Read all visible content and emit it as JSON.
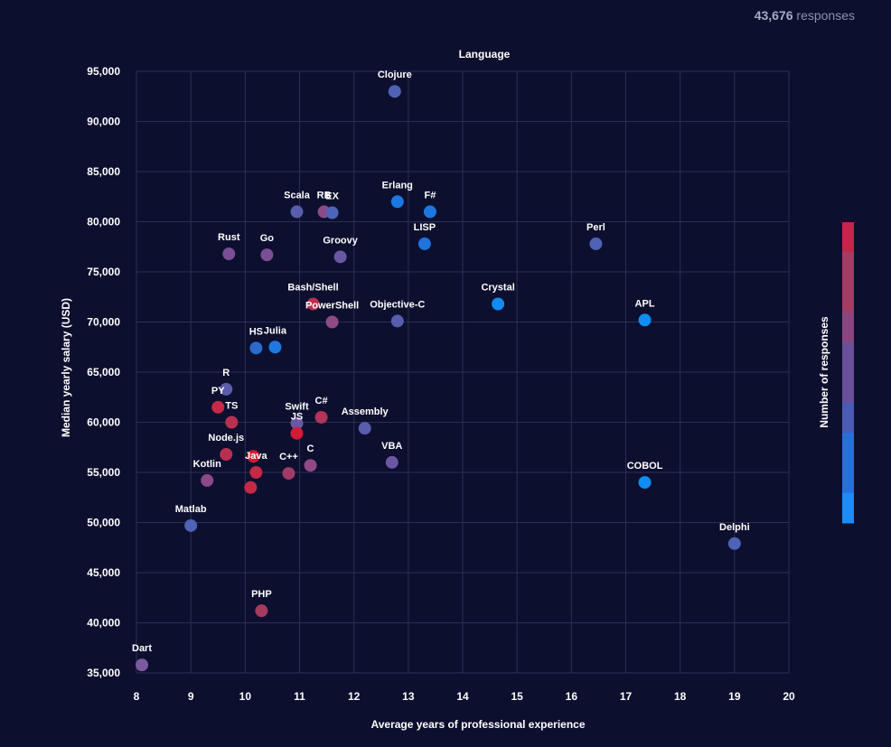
{
  "header": {
    "count": "43,676",
    "count_suffix": "responses"
  },
  "chart_data": {
    "type": "scatter",
    "title": "Language",
    "xlabel": "Average years of professional experience",
    "ylabel": "Median yearly salary (USD)",
    "xlim": [
      8,
      20
    ],
    "ylim": [
      35000,
      95000
    ],
    "xticks": [
      "8",
      "9",
      "10",
      "11",
      "12",
      "13",
      "14",
      "15",
      "16",
      "17",
      "18",
      "19",
      "20"
    ],
    "yticks": [
      "35,000",
      "40,000",
      "45,000",
      "50,000",
      "55,000",
      "60,000",
      "65,000",
      "70,000",
      "75,000",
      "80,000",
      "85,000",
      "90,000",
      "95,000"
    ],
    "grid": true,
    "legend": {
      "title": "Number of responses",
      "placement": "right",
      "colors": [
        "#1a8cff",
        "#2a6fd8",
        "#4a5bb5",
        "#6a4f9a",
        "#8a4580",
        "#a83a64",
        "#c5254a"
      ]
    },
    "points": [
      {
        "label": "Clojure",
        "x": 12.75,
        "y": 93000,
        "color": "#4f62b5"
      },
      {
        "label": "Scala",
        "x": 10.95,
        "y": 81000,
        "color": "#5a5dab"
      },
      {
        "label": "RB",
        "x": 11.45,
        "y": 81000,
        "color": "#8a4a88"
      },
      {
        "label": "EX",
        "x": 11.6,
        "y": 80900,
        "color": "#4d64b8"
      },
      {
        "label": "Erlang",
        "x": 12.8,
        "y": 82000,
        "color": "#1c78e0"
      },
      {
        "label": "F#",
        "x": 13.4,
        "y": 81000,
        "color": "#1c78e0"
      },
      {
        "label": "Rust",
        "x": 9.7,
        "y": 76800,
        "color": "#7a4f96"
      },
      {
        "label": "Go",
        "x": 10.4,
        "y": 76700,
        "color": "#7a4f96"
      },
      {
        "label": "Groovy",
        "x": 11.75,
        "y": 76500,
        "color": "#6a57a2"
      },
      {
        "label": "LISP",
        "x": 13.3,
        "y": 77800,
        "color": "#1e74dc"
      },
      {
        "label": "Perl",
        "x": 16.45,
        "y": 77800,
        "color": "#4f62b5"
      },
      {
        "label": "Bash/Shell",
        "x": 11.25,
        "y": 71800,
        "color": "#b8304f"
      },
      {
        "label": "PowerShell",
        "x": 11.6,
        "y": 70000,
        "color": "#8f4a86"
      },
      {
        "label": "Objective-C",
        "x": 12.8,
        "y": 70100,
        "color": "#5a5dab"
      },
      {
        "label": "Crystal",
        "x": 14.65,
        "y": 71800,
        "color": "#108cf2"
      },
      {
        "label": "APL",
        "x": 17.35,
        "y": 70200,
        "color": "#108cf2"
      },
      {
        "label": "HS",
        "x": 10.2,
        "y": 67400,
        "color": "#2c6bc9"
      },
      {
        "label": "Julia",
        "x": 10.55,
        "y": 67500,
        "color": "#1c78e0"
      },
      {
        "label": "R",
        "x": 9.65,
        "y": 63300,
        "color": "#5a5dab"
      },
      {
        "label": "PY",
        "x": 9.5,
        "y": 61500,
        "color": "#c52a48"
      },
      {
        "label": "TS",
        "x": 9.75,
        "y": 60000,
        "color": "#b83050"
      },
      {
        "label": "Swift",
        "x": 10.95,
        "y": 59900,
        "color": "#6a57a2"
      },
      {
        "label": "C#",
        "x": 11.4,
        "y": 60500,
        "color": "#b13558"
      },
      {
        "label": "JS",
        "x": 10.95,
        "y": 58900,
        "color": "#d21c36"
      },
      {
        "label": "Assembly",
        "x": 12.2,
        "y": 59400,
        "color": "#5a5dab"
      },
      {
        "label": "Node.js",
        "x": 9.65,
        "y": 56800,
        "color": "#b83050"
      },
      {
        "label": "",
        "x": 10.15,
        "y": 56600,
        "color": "#d21c36"
      },
      {
        "label": "Java",
        "x": 10.2,
        "y": 55000,
        "color": "#c22a45"
      },
      {
        "label": "C++",
        "x": 10.8,
        "y": 54900,
        "color": "#a03a66"
      },
      {
        "label": "C",
        "x": 11.2,
        "y": 55700,
        "color": "#8f4a86"
      },
      {
        "label": "VBA",
        "x": 12.7,
        "y": 56000,
        "color": "#6a57a2"
      },
      {
        "label": "Kotlin",
        "x": 9.3,
        "y": 54200,
        "color": "#8a4a88"
      },
      {
        "label": "",
        "x": 10.1,
        "y": 53500,
        "color": "#c22a45"
      },
      {
        "label": "COBOL",
        "x": 17.35,
        "y": 54000,
        "color": "#108cf2"
      },
      {
        "label": "Matlab",
        "x": 9.0,
        "y": 49700,
        "color": "#4f62b5"
      },
      {
        "label": "Delphi",
        "x": 19.0,
        "y": 47900,
        "color": "#4f62b5"
      },
      {
        "label": "PHP",
        "x": 10.3,
        "y": 41200,
        "color": "#a53a60"
      },
      {
        "label": "Dart",
        "x": 8.1,
        "y": 35800,
        "color": "#7a5aa0"
      }
    ]
  }
}
